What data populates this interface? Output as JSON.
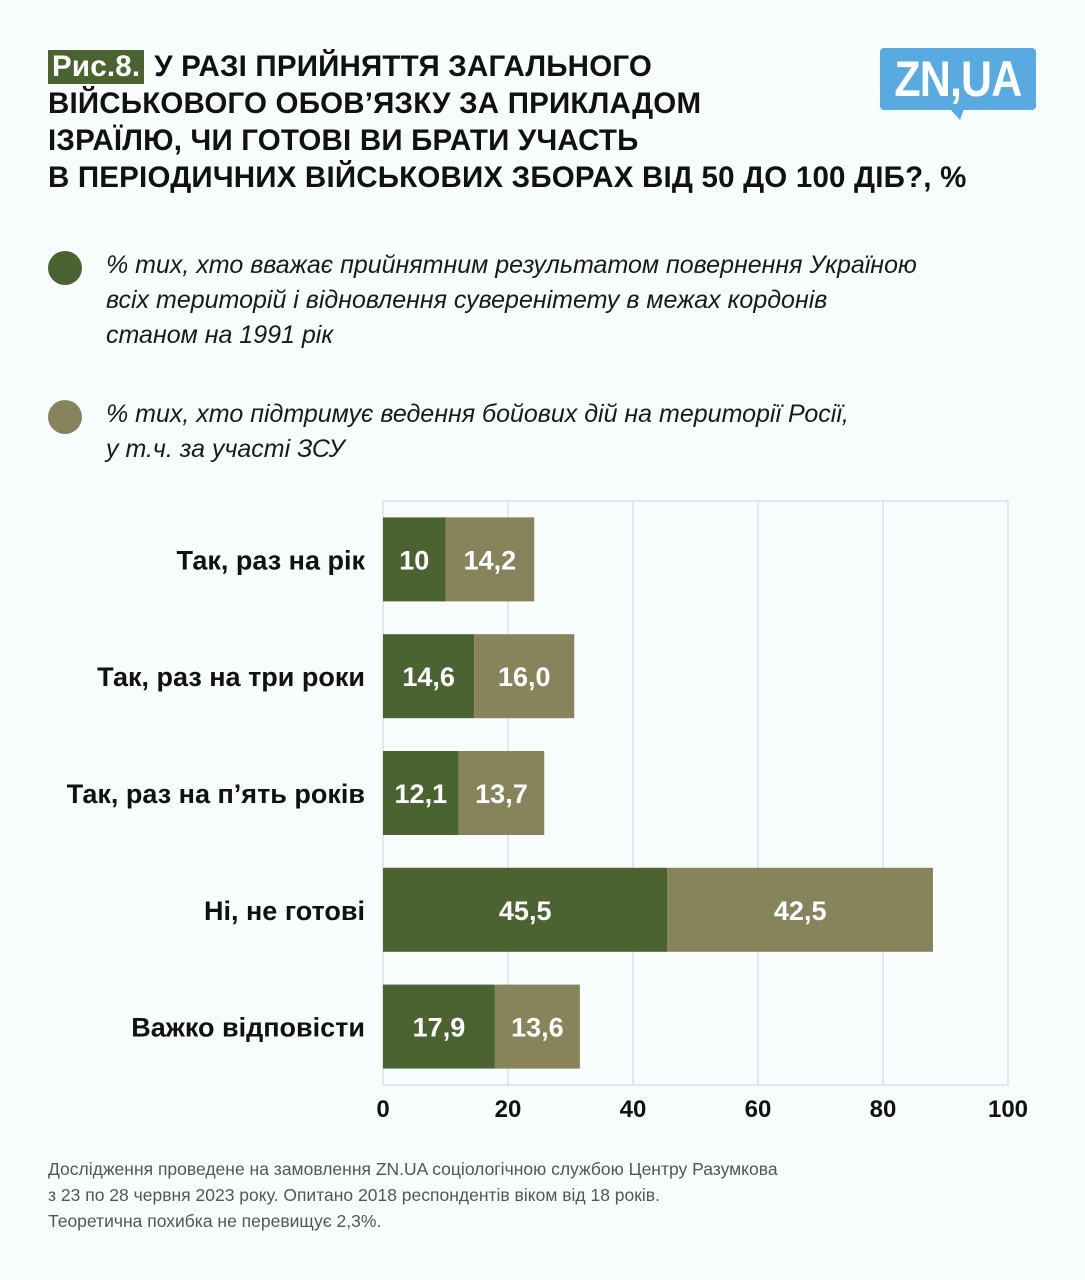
{
  "header": {
    "figure_tag": "Рис.8.",
    "title_lines": [
      "У РАЗІ ПРИЙНЯТТЯ ЗАГАЛЬНОГО",
      "ВІЙСЬКОВОГО ОБОВ’ЯЗКУ ЗА ПРИКЛАДОМ",
      "ІЗРАЇЛЮ, ЧИ ГОТОВІ ВИ БРАТИ УЧАСТЬ",
      "В ПЕРІОДИЧНИХ ВІЙСЬКОВИХ ЗБОРАХ ВІД 50 ДО 100 ДІБ?, %"
    ],
    "logo_text": "ZN,UA"
  },
  "colors": {
    "series1": "#4a6331",
    "series2": "#87845c",
    "logo": "#5aaae2",
    "tag": "#4a6331"
  },
  "legend": [
    {
      "text": "% тих, хто вважає прийнятним результатом повернення Україною\nвсіх територій і відновлення суверенітету в межах кордонів\nстаном на 1991 рік"
    },
    {
      "text": "% тих, хто підтримує ведення бойових дій на території Росії,\nу т.ч. за участі ЗСУ"
    }
  ],
  "chart_data": {
    "type": "bar",
    "orientation": "horizontal",
    "stacked": true,
    "title": "У разі прийняття загального військового обов’язку за прикладом Ізраїлю, чи готові ви брати участь в періодичних військових зборах від 50 до 100 діб?, %",
    "categories": [
      "Так, раз на рік",
      "Так, раз на три роки",
      "Так, раз на п’ять років",
      "Ні, не готові",
      "Важко відповісти"
    ],
    "series": [
      {
        "name": "% тих, хто вважає прийнятним результатом повернення Україною всіх територій і відновлення суверенітету в межах кордонів станом на 1991 рік",
        "values": [
          10,
          14.6,
          12.1,
          45.5,
          17.9
        ],
        "labels": [
          "10",
          "14,6",
          "12,1",
          "45,5",
          "17,9"
        ]
      },
      {
        "name": "% тих, хто підтримує ведення бойових дій на території Росії, у т.ч. за участі ЗСУ",
        "values": [
          14.2,
          16.0,
          13.7,
          42.5,
          13.6
        ],
        "labels": [
          "14,2",
          "16,0",
          "13,7",
          "42,5",
          "13,6"
        ]
      }
    ],
    "xlim": [
      0,
      100
    ],
    "xticks": [
      0,
      20,
      40,
      60,
      80,
      100
    ],
    "xlabel": "",
    "ylabel": "",
    "grid": true,
    "legend_position": "top"
  },
  "footnote": "Дослідження проведене на замовлення ZN.UA соціологічною службою Центру Разумкова\nз 23 по 28 червня 2023 року. Опитано 2018 респондентів віком від 18 років.\nТеоретична похибка не перевищує 2,3%."
}
